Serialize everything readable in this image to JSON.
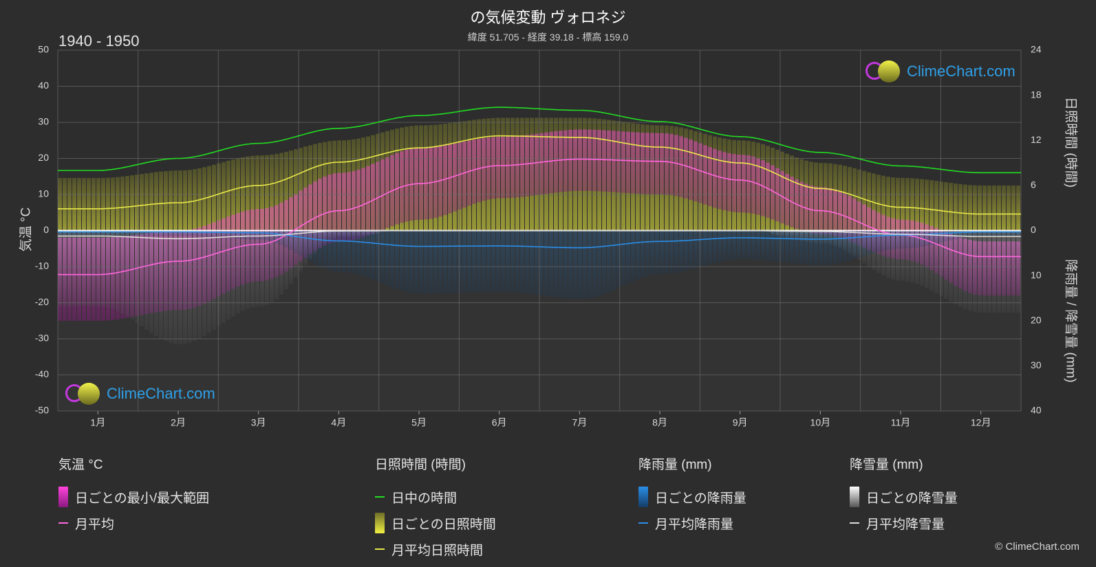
{
  "header": {
    "title": "の気候変動 ヴォロネジ",
    "subtitle": "緯度 51.705 - 経度 39.18 - 標高 159.0",
    "period": "1940 - 1950"
  },
  "axes": {
    "left_title": "気温 °C",
    "right_top_title": "日照時間 (時間)",
    "right_bottom_title": "降雨量 / 降雪量 (mm)"
  },
  "chart_data": {
    "type": "line",
    "categories": [
      "1月",
      "2月",
      "3月",
      "4月",
      "5月",
      "6月",
      "7月",
      "8月",
      "9月",
      "10月",
      "11月",
      "12月"
    ],
    "y_left": {
      "range": [
        -50,
        50
      ],
      "ticks": [
        "50",
        "40",
        "30",
        "20",
        "10",
        "0",
        "-10",
        "-20",
        "-30",
        "-40",
        "-50"
      ]
    },
    "y_right_sunshine": {
      "range": [
        0,
        24
      ],
      "ticks": [
        "24",
        "18",
        "12",
        "6",
        "0"
      ]
    },
    "y_right_precip": {
      "range": [
        0,
        40
      ],
      "ticks": [
        "0",
        "10",
        "20",
        "30",
        "40"
      ]
    },
    "series": [
      {
        "name": "日中の時間",
        "color": "#22dd22",
        "axis": "sunshine_hours",
        "values": [
          8.0,
          9.6,
          11.6,
          13.6,
          15.3,
          16.4,
          16.0,
          14.5,
          12.5,
          10.4,
          8.6,
          7.7
        ]
      },
      {
        "name": "月平均日照時間",
        "color": "#e8e84a",
        "axis": "sunshine_hours",
        "values": [
          2.9,
          3.7,
          6.0,
          9.1,
          11.0,
          12.6,
          12.4,
          11.1,
          9.0,
          5.6,
          3.1,
          2.2
        ]
      },
      {
        "name": "月平均",
        "color": "#ff66dd",
        "axis": "temperature_c",
        "values": [
          -12.2,
          -8.5,
          -3.8,
          5.5,
          13.0,
          18.0,
          19.8,
          19.2,
          14.0,
          5.5,
          -1.2,
          -7.2
        ]
      },
      {
        "name": "月平均降雨量",
        "color": "#2a8ee8",
        "axis": "precip_mm",
        "values": [
          0.3,
          0.3,
          0.5,
          2.3,
          3.5,
          3.4,
          3.8,
          2.4,
          1.6,
          1.9,
          1.0,
          0.3
        ]
      },
      {
        "name": "月平均降雪量",
        "color": "#dddddd",
        "axis": "precip_mm",
        "values": [
          1.2,
          1.8,
          1.2,
          0.1,
          0.0,
          0.0,
          0.0,
          0.0,
          0.0,
          0.2,
          0.8,
          1.3
        ]
      }
    ],
    "daily_ranges": {
      "temperature_max_c": [
        -2,
        0,
        6,
        16,
        23,
        26,
        28,
        27,
        21,
        12,
        3,
        -3
      ],
      "temperature_min_c": [
        -25,
        -22,
        -14,
        -3,
        3,
        9,
        11,
        10,
        5,
        -1,
        -8,
        -18
      ],
      "sunshine_band_hours": [
        7,
        8,
        10,
        12,
        14,
        15,
        15,
        14,
        12,
        9,
        7,
        6
      ]
    },
    "grid": true
  },
  "legend": {
    "temperature": {
      "header": "気温 °C",
      "items": [
        "日ごとの最小/最大範囲",
        "月平均"
      ]
    },
    "sunshine": {
      "header": "日照時間 (時間)",
      "items": [
        "日中の時間",
        "日ごとの日照時間",
        "月平均日照時間"
      ]
    },
    "rain": {
      "header": "降雨量 (mm)",
      "items": [
        "日ごとの降雨量",
        "月平均降雨量"
      ]
    },
    "snow": {
      "header": "降雪量 (mm)",
      "items": [
        "日ごとの降雪量",
        "月平均降雪量"
      ]
    }
  },
  "brand": {
    "name": "ClimeChart.com",
    "copyright": "© ClimeChart.com"
  },
  "colors": {
    "background": "#2d2d2d",
    "daylight": "#22dd22",
    "sunshine": "#e8e84a",
    "temperature": "#ff66dd",
    "rain": "#2a8ee8",
    "snow": "#dddddd",
    "brand": "#2fa0e8"
  }
}
